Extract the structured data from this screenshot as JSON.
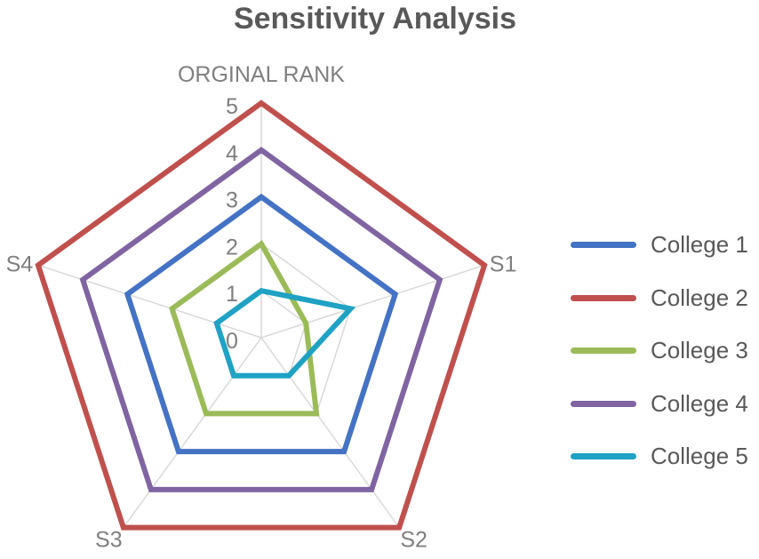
{
  "chart_data": {
    "type": "radar",
    "title": "Sensitivity Analysis",
    "axes": [
      "ORGINAL RANK",
      "S1",
      "S2",
      "S3",
      "S4"
    ],
    "range": [
      0,
      5
    ],
    "ticks": [
      "0",
      "1",
      "2",
      "3",
      "4",
      "5"
    ],
    "legend_position": "right",
    "series": [
      {
        "name": "College 1",
        "color": "#4472C4",
        "values": [
          3,
          3,
          3,
          3,
          3
        ]
      },
      {
        "name": "College 2",
        "color": "#C0504D",
        "values": [
          5,
          5,
          5,
          5,
          5
        ]
      },
      {
        "name": "College 3",
        "color": "#9BBB59",
        "values": [
          2,
          1,
          2,
          2,
          2
        ]
      },
      {
        "name": "College 4",
        "color": "#8064A2",
        "values": [
          4,
          4,
          4,
          4,
          4
        ]
      },
      {
        "name": "College 5",
        "color": "#1FA2C4",
        "values": [
          1,
          2,
          1,
          1,
          1
        ]
      }
    ],
    "gridline_color": "#d9d9d9"
  }
}
